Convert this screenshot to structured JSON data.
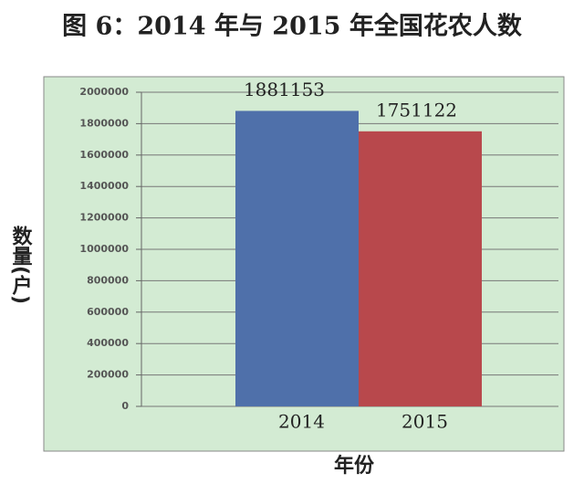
{
  "chart_data": {
    "type": "bar",
    "title": "图 6：2014 年与 2015 年全国花农人数",
    "categories": [
      "2014",
      "2015"
    ],
    "values": [
      1881153,
      1751122
    ],
    "colors": [
      "#4f70aa",
      "#b8484c"
    ],
    "ylim": [
      0,
      2000000
    ],
    "yticks": [
      0,
      200000,
      400000,
      600000,
      800000,
      1000000,
      1200000,
      1400000,
      1600000,
      1800000,
      2000000
    ],
    "grid": true,
    "xlabel": "年份",
    "ylabel": "数量(户)"
  }
}
